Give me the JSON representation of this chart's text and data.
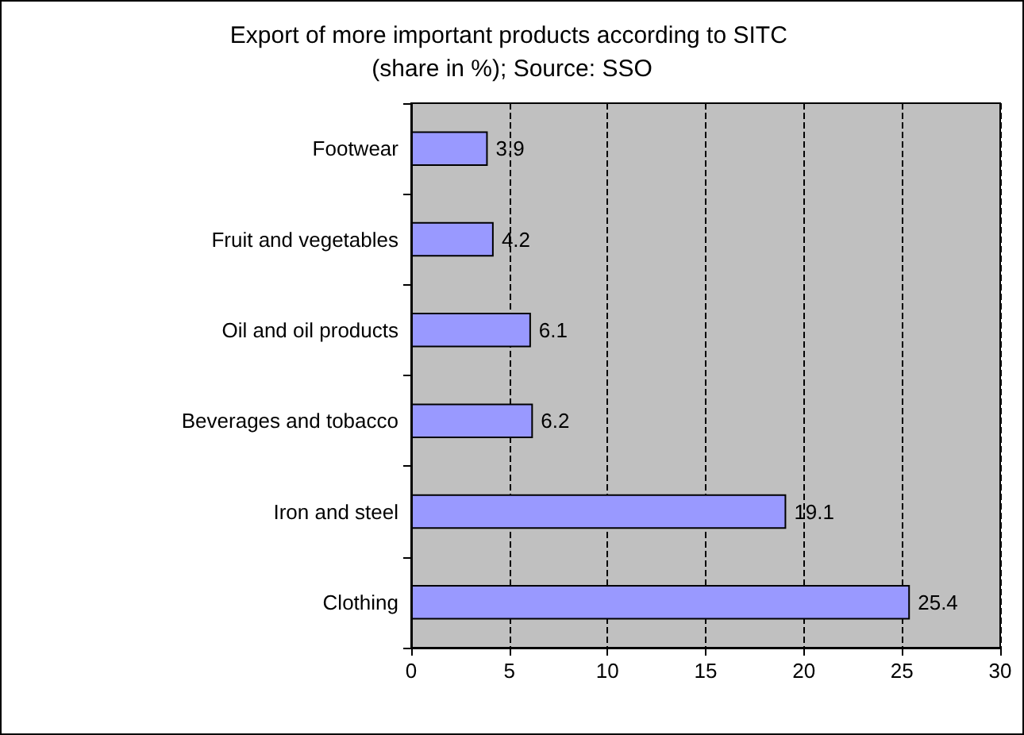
{
  "chart_data": {
    "type": "bar",
    "orientation": "horizontal",
    "title": "Export of more important products according to SITC (share in %); Source: SSO",
    "categories": [
      "Footwear",
      "Fruit and vegetables",
      "Oil and oil products",
      "Beverages and tobacco",
      "Iron and steel",
      "Clothing"
    ],
    "values": [
      3.9,
      4.2,
      6.1,
      6.2,
      19.1,
      25.4
    ],
    "color": "#9999ff",
    "xlim": [
      0,
      30
    ],
    "xticks": [
      0,
      5,
      10,
      15,
      20,
      25,
      30
    ],
    "grid": "x",
    "line_style": "dashed",
    "data_labels": true
  }
}
